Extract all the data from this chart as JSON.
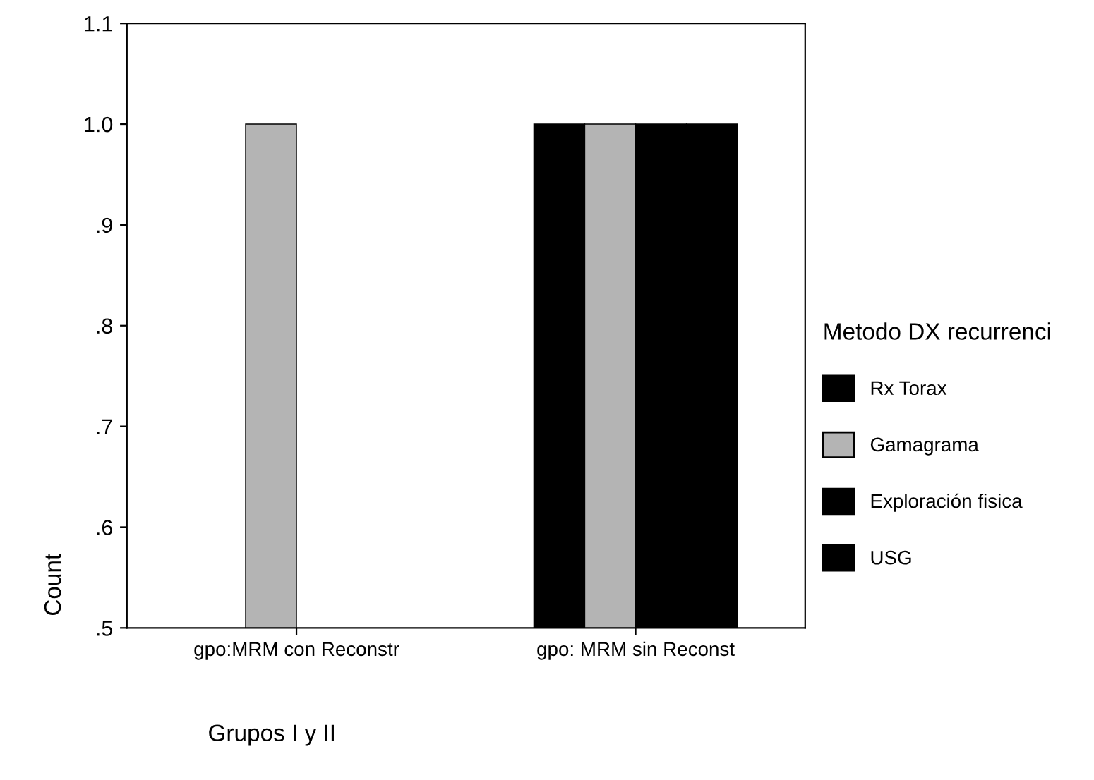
{
  "chart_data": {
    "type": "bar",
    "categories": [
      "gpo:MRM con Reconstr",
      "gpo: MRM sin Reconst"
    ],
    "series": [
      {
        "name": "Rx Torax",
        "color": "#000000",
        "values": [
          null,
          1.0
        ]
      },
      {
        "name": "Gamagrama",
        "color": "#b4b4b4",
        "values": [
          1.0,
          1.0
        ]
      },
      {
        "name": "Exploración fisica",
        "color": "#000000",
        "values": [
          null,
          1.0
        ]
      },
      {
        "name": "USG",
        "color": "#000000",
        "values": [
          null,
          1.0
        ]
      }
    ],
    "xlabel": "Grupos I y II",
    "ylabel": "Count",
    "legend_title": "Metodo DX recurrenci",
    "ylim": [
      0.5,
      1.1
    ],
    "yticks": [
      {
        "value": 0.5,
        "label": ".5"
      },
      {
        "value": 0.6,
        "label": ".6"
      },
      {
        "value": 0.7,
        "label": ".7"
      },
      {
        "value": 0.8,
        "label": ".8"
      },
      {
        "value": 0.9,
        "label": ".9"
      },
      {
        "value": 1.0,
        "label": "1.0"
      },
      {
        "value": 1.1,
        "label": "1.1"
      }
    ],
    "grid": false,
    "legend": "right"
  }
}
